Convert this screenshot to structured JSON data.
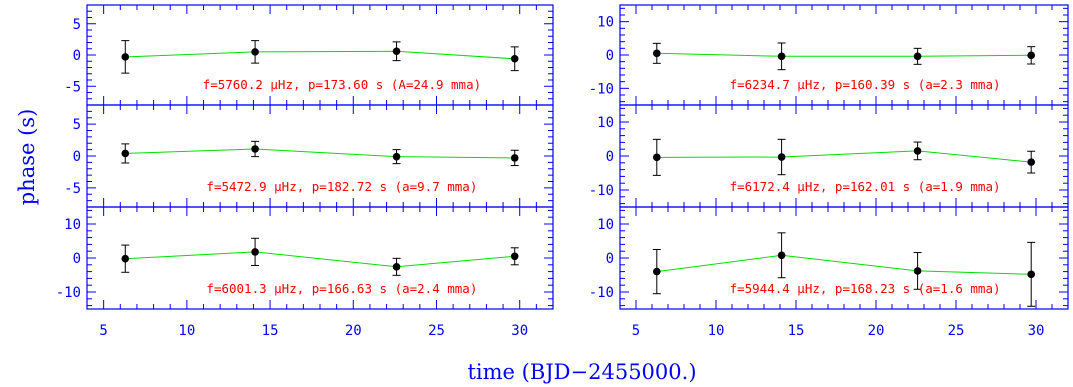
{
  "chart_data": {
    "type": "scatter",
    "xlabel": "time (BJD−2455000.)",
    "ylabel": "phase (s)",
    "xlim": [
      4,
      32
    ],
    "x_ticks": [
      5,
      10,
      15,
      20,
      25,
      30
    ],
    "colors": {
      "axes": "#0000ff",
      "line": "#00e000",
      "points": "#000000",
      "annotation": "#ff0000"
    },
    "panels": [
      {
        "annotation": "f=5760.2 μHz, p=173.60 s (A=24.9 mma)",
        "ylim": [
          -8,
          8
        ],
        "y_ticks": [
          -5,
          0,
          5
        ],
        "x": [
          6.3,
          14.1,
          22.6,
          29.7
        ],
        "y": [
          -0.3,
          0.5,
          0.6,
          -0.6
        ],
        "err": [
          2.6,
          1.8,
          1.5,
          1.9
        ]
      },
      {
        "annotation": "f=5472.9 μHz, p=182.72 s (a=9.7 mma)",
        "ylim": [
          -8,
          8
        ],
        "y_ticks": [
          -5,
          0,
          5
        ],
        "x": [
          6.3,
          14.1,
          22.6,
          29.7
        ],
        "y": [
          0.4,
          1.1,
          -0.1,
          -0.3
        ],
        "err": [
          1.5,
          1.2,
          1.1,
          1.2
        ]
      },
      {
        "annotation": "f=6001.3 μHz, p=166.63 s (a=2.4 mma)",
        "ylim": [
          -15,
          15
        ],
        "y_ticks": [
          -10,
          0,
          10
        ],
        "x": [
          6.3,
          14.1,
          22.6,
          29.7
        ],
        "y": [
          -0.2,
          1.8,
          -2.6,
          0.5
        ],
        "err": [
          4.0,
          4.0,
          2.5,
          2.5
        ]
      },
      {
        "annotation": "f=6234.7 μHz, p=160.39 s (a=2.3 mma)",
        "ylim": [
          -15,
          15
        ],
        "y_ticks": [
          -10,
          0,
          10
        ],
        "x": [
          6.3,
          14.1,
          22.6,
          29.7
        ],
        "y": [
          0.5,
          -0.4,
          -0.4,
          -0.1
        ],
        "err": [
          3.0,
          4.0,
          2.4,
          2.6
        ]
      },
      {
        "annotation": "f=6172.4 μHz, p=162.01 s (a=1.9 mma)",
        "ylim": [
          -15,
          15
        ],
        "y_ticks": [
          -10,
          0,
          10
        ],
        "x": [
          6.3,
          14.1,
          22.6,
          29.7
        ],
        "y": [
          -0.4,
          -0.3,
          1.5,
          -1.8
        ],
        "err": [
          5.3,
          5.2,
          2.6,
          3.2
        ]
      },
      {
        "annotation": "f=5944.4 μHz, p=168.23 s (a=1.6 mma)",
        "ylim": [
          -15,
          15
        ],
        "y_ticks": [
          -10,
          0,
          10
        ],
        "x": [
          6.3,
          14.1,
          22.6,
          29.7
        ],
        "y": [
          -4.0,
          0.8,
          -3.8,
          -4.8
        ],
        "err": [
          6.5,
          6.6,
          5.4,
          9.4
        ]
      }
    ]
  }
}
